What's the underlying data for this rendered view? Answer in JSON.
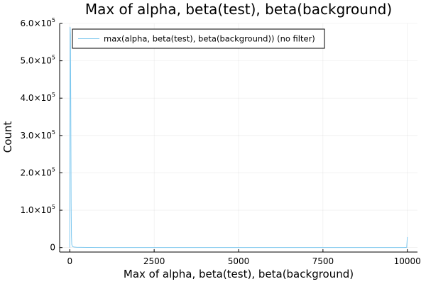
{
  "chart_data": {
    "type": "line",
    "title": "Max of alpha, beta(test), beta(background)",
    "xlabel": "Max of alpha, beta(test), beta(background)",
    "ylabel": "Count",
    "xlim": [
      -300,
      10300
    ],
    "ylim": [
      -12000,
      600000
    ],
    "x_ticks": [
      {
        "value": 0,
        "label": "0"
      },
      {
        "value": 2500,
        "label": "2500"
      },
      {
        "value": 5000,
        "label": "5000"
      },
      {
        "value": 7500,
        "label": "7500"
      },
      {
        "value": 10000,
        "label": "10000"
      }
    ],
    "y_ticks": [
      {
        "value": 0,
        "mantissa": "0",
        "exp": ""
      },
      {
        "value": 100000,
        "mantissa": "1.0×10",
        "exp": "5"
      },
      {
        "value": 200000,
        "mantissa": "2.0×10",
        "exp": "5"
      },
      {
        "value": 300000,
        "mantissa": "3.0×10",
        "exp": "5"
      },
      {
        "value": 400000,
        "mantissa": "4.0×10",
        "exp": "5"
      },
      {
        "value": 500000,
        "mantissa": "5.0×10",
        "exp": "5"
      },
      {
        "value": 600000,
        "mantissa": "6.0×10",
        "exp": "5"
      }
    ],
    "grid": true,
    "legend_position": "top-left",
    "series": [
      {
        "name": "max(alpha, beta(test), beta(background)) (no filter)",
        "color": "#7ec8ef",
        "x": [
          0,
          10,
          20,
          30,
          40,
          50,
          60,
          80,
          120,
          200,
          500,
          1000,
          2500,
          5000,
          7500,
          9900,
          9980,
          10000
        ],
        "y": [
          0,
          590000,
          570000,
          380000,
          120000,
          30000,
          8000,
          3000,
          1500,
          800,
          300,
          200,
          150,
          120,
          100,
          100,
          500,
          28000
        ]
      }
    ]
  }
}
